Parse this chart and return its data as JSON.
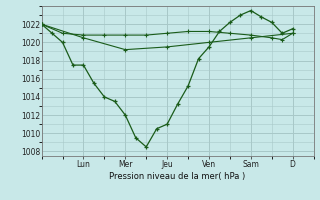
{
  "background_color": "#c8e8e8",
  "grid_color": "#a8c8c8",
  "line_color": "#1a5c1a",
  "marker_color": "#1a5c1a",
  "xlabel": "Pression niveau de la mer( hPa )",
  "ylim": [
    1007.5,
    1024.0
  ],
  "yticks": [
    1008,
    1010,
    1012,
    1014,
    1016,
    1018,
    1020,
    1022
  ],
  "day_labels": [
    "Lun",
    "Mer",
    "Jeu",
    "Ven",
    "Sam",
    "D"
  ],
  "day_positions": [
    2,
    4,
    6,
    8,
    10,
    12
  ],
  "xlim": [
    0,
    13
  ],
  "series1_x": [
    0,
    0.5,
    1,
    1.5,
    2,
    2.5,
    3,
    3.5,
    4,
    4.5,
    5,
    5.5,
    6,
    6.5,
    7,
    7.5,
    8,
    8.5,
    9,
    9.5,
    10,
    10.5,
    11,
    11.5,
    12
  ],
  "series1_y": [
    1022,
    1021,
    1020,
    1017.5,
    1017.5,
    1015.5,
    1014,
    1013.5,
    1012,
    1009.5,
    1008.5,
    1010.5,
    1011,
    1013.2,
    1015.2,
    1018.2,
    1019.5,
    1021.2,
    1022.2,
    1023.0,
    1023.5,
    1022.8,
    1022.2,
    1021.0,
    1021.5
  ],
  "series2_x": [
    0,
    1,
    2,
    3,
    4,
    5,
    6,
    7,
    8,
    9,
    10,
    11,
    11.5,
    12
  ],
  "series2_y": [
    1022,
    1021.0,
    1020.8,
    1020.8,
    1020.8,
    1020.8,
    1021.0,
    1021.2,
    1021.2,
    1021.0,
    1020.8,
    1020.5,
    1020.3,
    1021.0
  ],
  "series3_x": [
    0,
    2,
    4,
    6,
    8,
    10,
    12
  ],
  "series3_y": [
    1022,
    1020.5,
    1019.2,
    1019.5,
    1020.0,
    1020.5,
    1021.0
  ]
}
